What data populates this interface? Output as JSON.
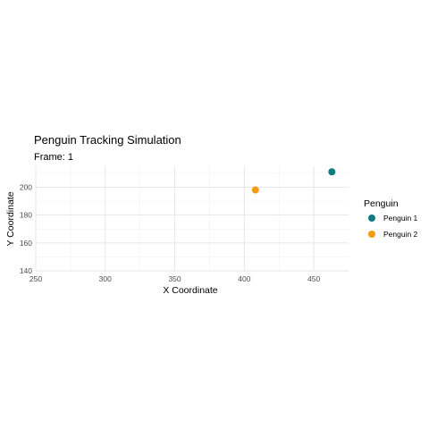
{
  "chart_data": {
    "type": "scatter",
    "title": "Penguin Tracking Simulation",
    "subtitle": "Frame: 1",
    "xlabel": "X Coordinate",
    "ylabel": "Y Coordinate",
    "xlim": [
      250,
      475
    ],
    "ylim": [
      140,
      215
    ],
    "xticks": [
      250,
      300,
      350,
      400,
      450
    ],
    "yticks": [
      140,
      160,
      180,
      200
    ],
    "grid": true,
    "legend": {
      "title": "Penguin",
      "placement": "right"
    },
    "series": [
      {
        "name": "Penguin 1",
        "color": "#137A7F",
        "points": [
          {
            "x": 463,
            "y": 211
          }
        ]
      },
      {
        "name": "Penguin 2",
        "color": "#F39C12",
        "points": [
          {
            "x": 408,
            "y": 198
          }
        ]
      }
    ]
  }
}
